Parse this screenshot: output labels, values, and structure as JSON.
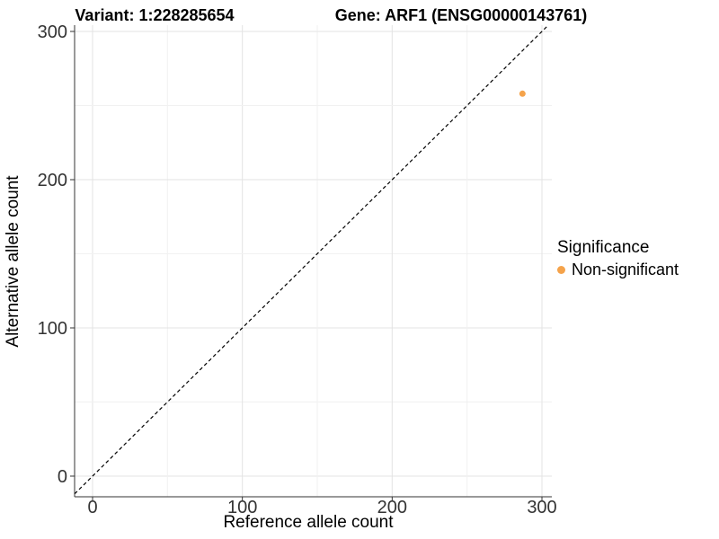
{
  "chart_data": {
    "type": "scatter",
    "titles": {
      "left": "Variant: 1:228285654",
      "right": "Gene: ARF1 (ENSG00000143761)"
    },
    "xlabel": "Reference allele count",
    "ylabel": "Alternative allele count",
    "x_ticks": [
      0,
      100,
      200,
      300
    ],
    "y_ticks": [
      0,
      100,
      200,
      300
    ],
    "xlim": [
      -13,
      307
    ],
    "ylim": [
      -14,
      304
    ],
    "grid": "on",
    "grid_step": 50,
    "series": [
      {
        "name": "Non-significant",
        "color": "#F5A34B",
        "points": [
          {
            "x": 287,
            "y": 258
          }
        ]
      }
    ],
    "reference_line": {
      "style": "dashed",
      "slope": 1,
      "intercept": 0,
      "color": "#000000"
    },
    "legend": {
      "position": "right",
      "title": "Significance",
      "items": [
        {
          "label": "Non-significant",
          "color": "#F5A34B"
        }
      ]
    }
  },
  "colors": {
    "grid_major": "#e3e3e3",
    "grid_minor": "#f1f1f1",
    "axis": "#333333",
    "tick_text": "#333333"
  }
}
